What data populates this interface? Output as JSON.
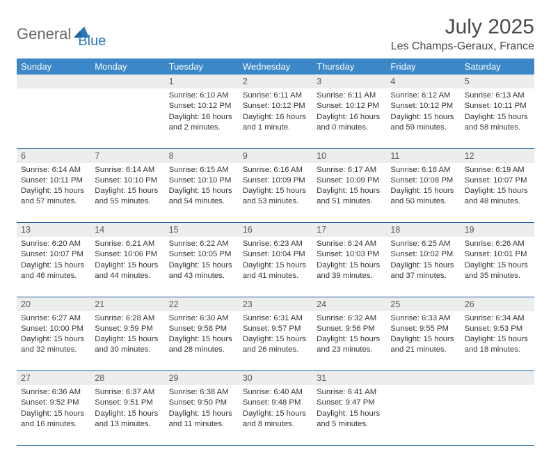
{
  "logo": {
    "word1": "General",
    "word2": "Blue"
  },
  "title": "July 2025",
  "location": "Les Champs-Geraux, France",
  "colors": {
    "header_bg": "#3b87c8",
    "header_text": "#ffffff",
    "daynum_bg": "#eceded",
    "daynum_text": "#5a5a5a",
    "row_border": "#1f5f99",
    "logo_gray": "#6a6a6a",
    "logo_blue": "#2a77bd"
  },
  "day_headers": [
    "Sunday",
    "Monday",
    "Tuesday",
    "Wednesday",
    "Thursday",
    "Friday",
    "Saturday"
  ],
  "weeks": [
    {
      "nums": [
        "",
        "",
        "1",
        "2",
        "3",
        "4",
        "5"
      ],
      "cells": [
        null,
        null,
        {
          "sunrise": "Sunrise: 6:10 AM",
          "sunset": "Sunset: 10:12 PM",
          "d1": "Daylight: 16 hours",
          "d2": "and 2 minutes."
        },
        {
          "sunrise": "Sunrise: 6:11 AM",
          "sunset": "Sunset: 10:12 PM",
          "d1": "Daylight: 16 hours",
          "d2": "and 1 minute."
        },
        {
          "sunrise": "Sunrise: 6:11 AM",
          "sunset": "Sunset: 10:12 PM",
          "d1": "Daylight: 16 hours",
          "d2": "and 0 minutes."
        },
        {
          "sunrise": "Sunrise: 6:12 AM",
          "sunset": "Sunset: 10:12 PM",
          "d1": "Daylight: 15 hours",
          "d2": "and 59 minutes."
        },
        {
          "sunrise": "Sunrise: 6:13 AM",
          "sunset": "Sunset: 10:11 PM",
          "d1": "Daylight: 15 hours",
          "d2": "and 58 minutes."
        }
      ]
    },
    {
      "nums": [
        "6",
        "7",
        "8",
        "9",
        "10",
        "11",
        "12"
      ],
      "cells": [
        {
          "sunrise": "Sunrise: 6:14 AM",
          "sunset": "Sunset: 10:11 PM",
          "d1": "Daylight: 15 hours",
          "d2": "and 57 minutes."
        },
        {
          "sunrise": "Sunrise: 6:14 AM",
          "sunset": "Sunset: 10:10 PM",
          "d1": "Daylight: 15 hours",
          "d2": "and 55 minutes."
        },
        {
          "sunrise": "Sunrise: 6:15 AM",
          "sunset": "Sunset: 10:10 PM",
          "d1": "Daylight: 15 hours",
          "d2": "and 54 minutes."
        },
        {
          "sunrise": "Sunrise: 6:16 AM",
          "sunset": "Sunset: 10:09 PM",
          "d1": "Daylight: 15 hours",
          "d2": "and 53 minutes."
        },
        {
          "sunrise": "Sunrise: 6:17 AM",
          "sunset": "Sunset: 10:09 PM",
          "d1": "Daylight: 15 hours",
          "d2": "and 51 minutes."
        },
        {
          "sunrise": "Sunrise: 6:18 AM",
          "sunset": "Sunset: 10:08 PM",
          "d1": "Daylight: 15 hours",
          "d2": "and 50 minutes."
        },
        {
          "sunrise": "Sunrise: 6:19 AM",
          "sunset": "Sunset: 10:07 PM",
          "d1": "Daylight: 15 hours",
          "d2": "and 48 minutes."
        }
      ]
    },
    {
      "nums": [
        "13",
        "14",
        "15",
        "16",
        "17",
        "18",
        "19"
      ],
      "cells": [
        {
          "sunrise": "Sunrise: 6:20 AM",
          "sunset": "Sunset: 10:07 PM",
          "d1": "Daylight: 15 hours",
          "d2": "and 46 minutes."
        },
        {
          "sunrise": "Sunrise: 6:21 AM",
          "sunset": "Sunset: 10:06 PM",
          "d1": "Daylight: 15 hours",
          "d2": "and 44 minutes."
        },
        {
          "sunrise": "Sunrise: 6:22 AM",
          "sunset": "Sunset: 10:05 PM",
          "d1": "Daylight: 15 hours",
          "d2": "and 43 minutes."
        },
        {
          "sunrise": "Sunrise: 6:23 AM",
          "sunset": "Sunset: 10:04 PM",
          "d1": "Daylight: 15 hours",
          "d2": "and 41 minutes."
        },
        {
          "sunrise": "Sunrise: 6:24 AM",
          "sunset": "Sunset: 10:03 PM",
          "d1": "Daylight: 15 hours",
          "d2": "and 39 minutes."
        },
        {
          "sunrise": "Sunrise: 6:25 AM",
          "sunset": "Sunset: 10:02 PM",
          "d1": "Daylight: 15 hours",
          "d2": "and 37 minutes."
        },
        {
          "sunrise": "Sunrise: 6:26 AM",
          "sunset": "Sunset: 10:01 PM",
          "d1": "Daylight: 15 hours",
          "d2": "and 35 minutes."
        }
      ]
    },
    {
      "nums": [
        "20",
        "21",
        "22",
        "23",
        "24",
        "25",
        "26"
      ],
      "cells": [
        {
          "sunrise": "Sunrise: 6:27 AM",
          "sunset": "Sunset: 10:00 PM",
          "d1": "Daylight: 15 hours",
          "d2": "and 32 minutes."
        },
        {
          "sunrise": "Sunrise: 6:28 AM",
          "sunset": "Sunset: 9:59 PM",
          "d1": "Daylight: 15 hours",
          "d2": "and 30 minutes."
        },
        {
          "sunrise": "Sunrise: 6:30 AM",
          "sunset": "Sunset: 9:58 PM",
          "d1": "Daylight: 15 hours",
          "d2": "and 28 minutes."
        },
        {
          "sunrise": "Sunrise: 6:31 AM",
          "sunset": "Sunset: 9:57 PM",
          "d1": "Daylight: 15 hours",
          "d2": "and 26 minutes."
        },
        {
          "sunrise": "Sunrise: 6:32 AM",
          "sunset": "Sunset: 9:56 PM",
          "d1": "Daylight: 15 hours",
          "d2": "and 23 minutes."
        },
        {
          "sunrise": "Sunrise: 6:33 AM",
          "sunset": "Sunset: 9:55 PM",
          "d1": "Daylight: 15 hours",
          "d2": "and 21 minutes."
        },
        {
          "sunrise": "Sunrise: 6:34 AM",
          "sunset": "Sunset: 9:53 PM",
          "d1": "Daylight: 15 hours",
          "d2": "and 18 minutes."
        }
      ]
    },
    {
      "nums": [
        "27",
        "28",
        "29",
        "30",
        "31",
        "",
        ""
      ],
      "cells": [
        {
          "sunrise": "Sunrise: 6:36 AM",
          "sunset": "Sunset: 9:52 PM",
          "d1": "Daylight: 15 hours",
          "d2": "and 16 minutes."
        },
        {
          "sunrise": "Sunrise: 6:37 AM",
          "sunset": "Sunset: 9:51 PM",
          "d1": "Daylight: 15 hours",
          "d2": "and 13 minutes."
        },
        {
          "sunrise": "Sunrise: 6:38 AM",
          "sunset": "Sunset: 9:50 PM",
          "d1": "Daylight: 15 hours",
          "d2": "and 11 minutes."
        },
        {
          "sunrise": "Sunrise: 6:40 AM",
          "sunset": "Sunset: 9:48 PM",
          "d1": "Daylight: 15 hours",
          "d2": "and 8 minutes."
        },
        {
          "sunrise": "Sunrise: 6:41 AM",
          "sunset": "Sunset: 9:47 PM",
          "d1": "Daylight: 15 hours",
          "d2": "and 5 minutes."
        },
        null,
        null
      ]
    }
  ]
}
